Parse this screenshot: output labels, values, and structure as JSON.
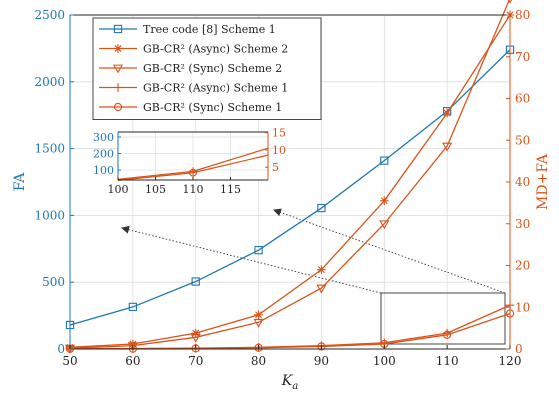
{
  "chart_data": {
    "type": "line",
    "x": [
      50,
      60,
      70,
      80,
      90,
      100,
      110,
      120
    ],
    "xlabel": "K",
    "xlabel_sub": "a",
    "xlim": [
      50,
      120
    ],
    "xticks": [
      "50",
      "60",
      "70",
      "80",
      "90",
      "100",
      "110",
      "120"
    ],
    "left_axis": {
      "label": "FA",
      "color": "#1f77b4",
      "ylim": [
        0,
        2500
      ],
      "ticks": [
        "0",
        "500",
        "1000",
        "1500",
        "2000",
        "2500"
      ]
    },
    "right_axis": {
      "label": "MD+FA",
      "color": "#d95319",
      "ylim": [
        0,
        80
      ],
      "ticks": [
        "0",
        "10",
        "20",
        "30",
        "40",
        "50",
        "60",
        "70",
        "80"
      ]
    },
    "grid": true,
    "legend_position": "top-left",
    "series": [
      {
        "name": "Tree code [8] Scheme 1",
        "axis": "left",
        "marker": "square",
        "color": "#1f77b4",
        "values": [
          180,
          315,
          505,
          740,
          1055,
          1410,
          1780,
          2240
        ]
      },
      {
        "name": "GB-CR² (Async) Scheme 2",
        "axis": "right",
        "marker": "asterisk",
        "color": "#d95319",
        "values": [
          0.4,
          1.2,
          3.8,
          8.2,
          19,
          35.5,
          56.5,
          80
        ]
      },
      {
        "name": "GB-CR² (Sync) Scheme 2",
        "axis": "right",
        "marker": "triangle-down",
        "color": "#d95319",
        "values": [
          0.2,
          0.8,
          2.8,
          6.4,
          14.6,
          30,
          48.6,
          84
        ]
      },
      {
        "name": "GB-CR² (Async) Scheme 1",
        "axis": "right",
        "marker": "plus",
        "color": "#d95319",
        "values": [
          0.05,
          0.1,
          0.2,
          0.4,
          0.8,
          1.5,
          3.8,
          10.5
        ]
      },
      {
        "name": "GB-CR² (Sync) Scheme 1",
        "axis": "right",
        "marker": "circle",
        "color": "#d95319",
        "values": [
          0.03,
          0.08,
          0.15,
          0.3,
          0.6,
          1.2,
          3.4,
          8.5
        ]
      }
    ],
    "inset": {
      "xlim": [
        100,
        120
      ],
      "xticks": [
        "100",
        "105",
        "110",
        "115"
      ],
      "left_ticks": [
        "100",
        "200",
        "300"
      ],
      "right_ticks": [
        "5",
        "10",
        "15"
      ],
      "left_ylim": [
        40,
        330
      ],
      "right_ylim": [
        1.3,
        15.2
      ]
    }
  }
}
